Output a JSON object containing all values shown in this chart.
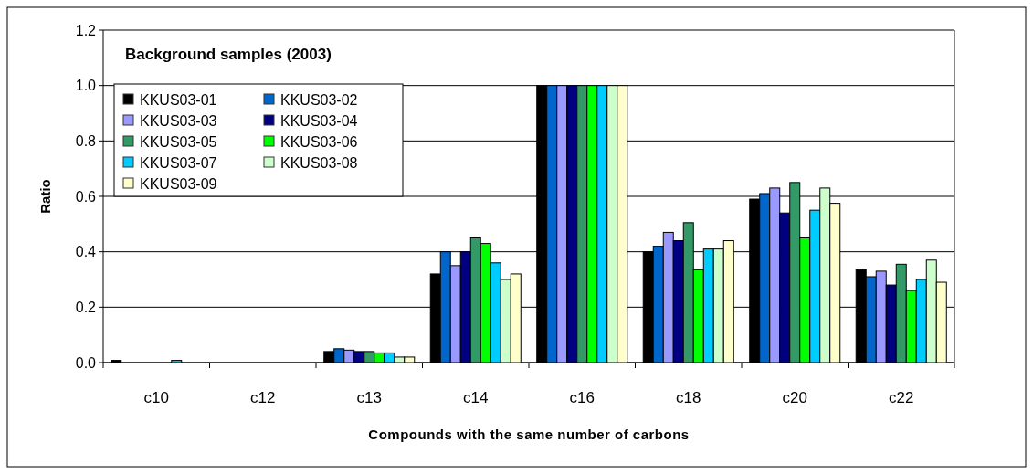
{
  "chart_data": {
    "type": "bar",
    "title": "Background samples (2003)",
    "xlabel": "Compounds with the same number of carbons",
    "ylabel": "Ratio",
    "categories": [
      "c10",
      "c12",
      "c13",
      "c14",
      "c16",
      "c18",
      "c20",
      "c22"
    ],
    "series": [
      {
        "name": "KKUS03-01",
        "color": "#000000",
        "values": [
          0.008,
          0,
          0.04,
          0.32,
          1.0,
          0.4,
          0.59,
          0.335
        ]
      },
      {
        "name": "KKUS03-02",
        "color": "#0066cc",
        "values": [
          0,
          0,
          0.05,
          0.4,
          1.0,
          0.42,
          0.61,
          0.31
        ]
      },
      {
        "name": "KKUS03-03",
        "color": "#9999ff",
        "values": [
          0,
          0,
          0.045,
          0.35,
          1.0,
          0.47,
          0.63,
          0.33
        ]
      },
      {
        "name": "KKUS03-04",
        "color": "#000080",
        "values": [
          0,
          0,
          0.04,
          0.4,
          1.0,
          0.44,
          0.54,
          0.28
        ]
      },
      {
        "name": "KKUS03-05",
        "color": "#339966",
        "values": [
          0,
          0,
          0.04,
          0.45,
          1.0,
          0.505,
          0.65,
          0.355
        ]
      },
      {
        "name": "KKUS03-06",
        "color": "#00ff00",
        "values": [
          0,
          0,
          0.035,
          0.43,
          1.0,
          0.335,
          0.45,
          0.26
        ]
      },
      {
        "name": "KKUS03-07",
        "color": "#00ccff",
        "values": [
          0.008,
          0,
          0.035,
          0.36,
          1.0,
          0.41,
          0.55,
          0.3
        ]
      },
      {
        "name": "KKUS03-08",
        "color": "#ccffcc",
        "values": [
          0,
          0,
          0.02,
          0.3,
          1.0,
          0.41,
          0.63,
          0.37
        ]
      },
      {
        "name": "KKUS03-09",
        "color": "#ffffcc",
        "values": [
          0,
          0,
          0.02,
          0.32,
          1.0,
          0.44,
          0.575,
          0.29
        ]
      }
    ],
    "ylim": [
      0,
      1.2
    ],
    "yticks": [
      {
        "value": 0,
        "label": "0.0"
      },
      0.2,
      0.4,
      0.6,
      0.8,
      {
        "value": 1,
        "label": "1.0"
      },
      1.2
    ],
    "grid": "y",
    "legend": "top left"
  }
}
